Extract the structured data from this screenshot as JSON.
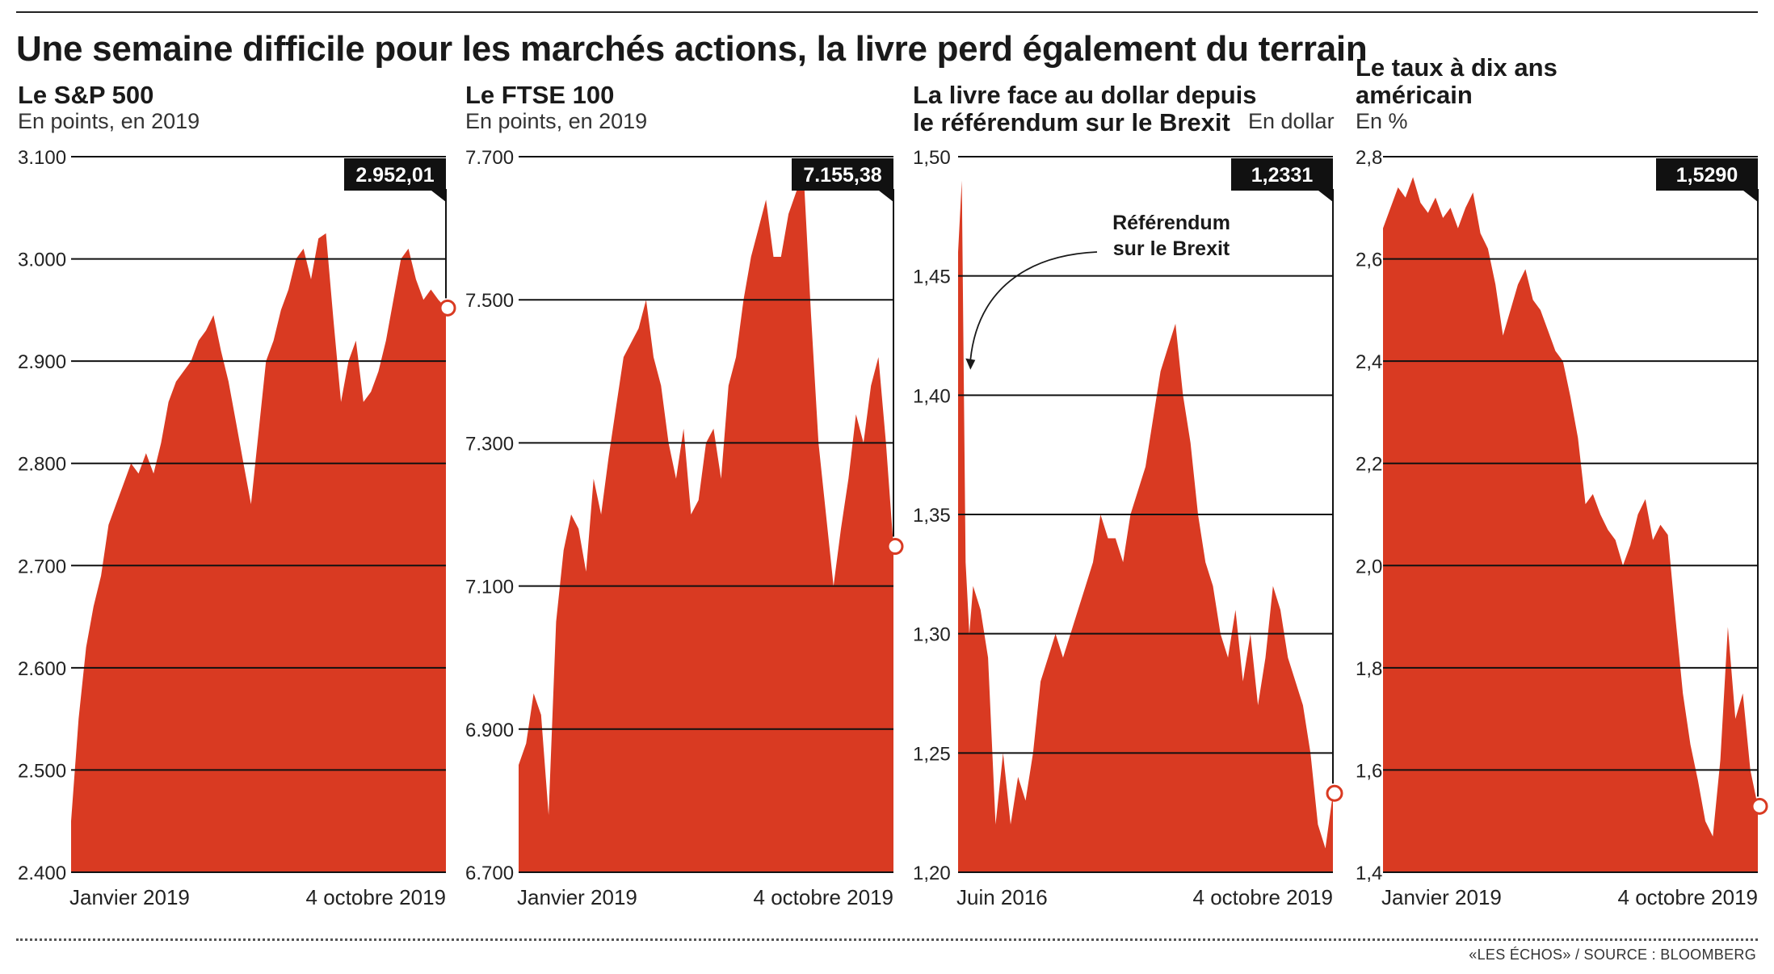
{
  "main_title": "Une semaine difficile pour les marchés actions, la livre perd également du terrain",
  "source": "«LES ÉCHOS» / SOURCE : BLOOMBERG",
  "colors": {
    "area": "#d93a22",
    "grid": "#111111",
    "label_bg": "#111111",
    "label_text": "#ffffff",
    "marker_fill": "#ffffff"
  },
  "chart_data": [
    {
      "type": "area",
      "title_lines": [
        "Le S&P 500"
      ],
      "subtitle": "En points, en 2019",
      "unit_right": "",
      "yticks": [
        2400,
        2500,
        2600,
        2700,
        2800,
        2900,
        3000,
        3100
      ],
      "ytick_labels": [
        "2.400",
        "2.500",
        "2.600",
        "2.700",
        "2.800",
        "2.900",
        "3.000",
        "3.100"
      ],
      "ylim": [
        2400,
        3100
      ],
      "x_start_label": "Janvier 2019",
      "x_end_label": "4 octobre 2019",
      "last_value": 2952.01,
      "last_label": "2.952,01",
      "x": [
        0,
        0.02,
        0.04,
        0.06,
        0.08,
        0.1,
        0.12,
        0.14,
        0.16,
        0.18,
        0.2,
        0.22,
        0.24,
        0.26,
        0.28,
        0.3,
        0.32,
        0.34,
        0.36,
        0.38,
        0.4,
        0.42,
        0.44,
        0.46,
        0.48,
        0.5,
        0.52,
        0.54,
        0.56,
        0.58,
        0.6,
        0.62,
        0.64,
        0.66,
        0.68,
        0.7,
        0.72,
        0.74,
        0.76,
        0.78,
        0.8,
        0.82,
        0.84,
        0.86,
        0.88,
        0.9,
        0.92,
        0.94,
        0.96,
        0.98,
        1
      ],
      "values": [
        2450,
        2550,
        2620,
        2660,
        2690,
        2740,
        2760,
        2780,
        2800,
        2790,
        2810,
        2790,
        2820,
        2860,
        2880,
        2890,
        2900,
        2920,
        2930,
        2945,
        2910,
        2880,
        2840,
        2800,
        2760,
        2830,
        2900,
        2920,
        2950,
        2970,
        3000,
        3010,
        2980,
        3020,
        3025,
        2940,
        2860,
        2900,
        2920,
        2860,
        2870,
        2890,
        2920,
        2960,
        3000,
        3010,
        2980,
        2960,
        2970,
        2960,
        2952
      ]
    },
    {
      "type": "area",
      "title_lines": [
        "Le FTSE 100"
      ],
      "subtitle": "En points, en 2019",
      "unit_right": "",
      "yticks": [
        6700,
        6900,
        7100,
        7300,
        7500,
        7700
      ],
      "ytick_labels": [
        "6.700",
        "6.900",
        "7.100",
        "7.300",
        "7.500",
        "7.700"
      ],
      "ylim": [
        6700,
        7700
      ],
      "x_start_label": "Janvier 2019",
      "x_end_label": "4 octobre 2019",
      "last_value": 7155.38,
      "last_label": "7.155,38",
      "x": [
        0,
        0.02,
        0.04,
        0.06,
        0.08,
        0.1,
        0.12,
        0.14,
        0.16,
        0.18,
        0.2,
        0.22,
        0.24,
        0.26,
        0.28,
        0.3,
        0.32,
        0.34,
        0.36,
        0.38,
        0.4,
        0.42,
        0.44,
        0.46,
        0.48,
        0.5,
        0.52,
        0.54,
        0.56,
        0.58,
        0.6,
        0.62,
        0.64,
        0.66,
        0.68,
        0.7,
        0.72,
        0.74,
        0.76,
        0.78,
        0.8,
        0.82,
        0.84,
        0.86,
        0.88,
        0.9,
        0.92,
        0.94,
        0.96,
        0.98,
        1
      ],
      "values": [
        6850,
        6880,
        6950,
        6920,
        6780,
        7050,
        7150,
        7200,
        7180,
        7120,
        7250,
        7200,
        7280,
        7350,
        7420,
        7440,
        7460,
        7500,
        7420,
        7380,
        7300,
        7250,
        7320,
        7200,
        7220,
        7300,
        7320,
        7250,
        7380,
        7420,
        7500,
        7560,
        7600,
        7640,
        7560,
        7560,
        7620,
        7650,
        7680,
        7480,
        7300,
        7200,
        7100,
        7180,
        7250,
        7340,
        7300,
        7380,
        7420,
        7300,
        7155
      ]
    },
    {
      "type": "area",
      "title_lines": [
        "La livre face au dollar depuis",
        "le référendum sur le Brexit"
      ],
      "subtitle": "",
      "unit_right": "En dollar",
      "yticks": [
        1.2,
        1.25,
        1.3,
        1.35,
        1.4,
        1.45,
        1.5
      ],
      "ytick_labels": [
        "1,20",
        "1,25",
        "1,30",
        "1,35",
        "1,40",
        "1,45",
        "1,50"
      ],
      "ylim": [
        1.2,
        1.5
      ],
      "x_start_label": "Juin 2016",
      "x_end_label": "4 octobre 2019",
      "last_value": 1.2331,
      "last_label": "1,2331",
      "annotation": {
        "lines": [
          "Référendum",
          "sur le Brexit"
        ],
        "x": 0.02,
        "y": 1.41
      },
      "x": [
        0,
        0.01,
        0.02,
        0.03,
        0.04,
        0.06,
        0.08,
        0.1,
        0.12,
        0.14,
        0.16,
        0.18,
        0.2,
        0.22,
        0.24,
        0.26,
        0.28,
        0.3,
        0.32,
        0.34,
        0.36,
        0.38,
        0.4,
        0.42,
        0.44,
        0.46,
        0.48,
        0.5,
        0.52,
        0.54,
        0.56,
        0.58,
        0.6,
        0.62,
        0.64,
        0.66,
        0.68,
        0.7,
        0.72,
        0.74,
        0.76,
        0.78,
        0.8,
        0.82,
        0.84,
        0.86,
        0.88,
        0.9,
        0.92,
        0.94,
        0.96,
        0.98,
        1
      ],
      "values": [
        1.46,
        1.49,
        1.33,
        1.3,
        1.32,
        1.31,
        1.29,
        1.22,
        1.25,
        1.22,
        1.24,
        1.23,
        1.25,
        1.28,
        1.29,
        1.3,
        1.29,
        1.3,
        1.31,
        1.32,
        1.33,
        1.35,
        1.34,
        1.34,
        1.33,
        1.35,
        1.36,
        1.37,
        1.39,
        1.41,
        1.42,
        1.43,
        1.4,
        1.38,
        1.35,
        1.33,
        1.32,
        1.3,
        1.29,
        1.31,
        1.28,
        1.3,
        1.27,
        1.29,
        1.32,
        1.31,
        1.29,
        1.28,
        1.27,
        1.25,
        1.22,
        1.21,
        1.233
      ]
    },
    {
      "type": "area",
      "title_lines": [
        "Le taux à dix ans",
        "américain"
      ],
      "subtitle": "En %",
      "unit_right": "",
      "yticks": [
        1.4,
        1.6,
        1.8,
        2.0,
        2.2,
        2.4,
        2.6,
        2.8
      ],
      "ytick_labels": [
        "1,4",
        "1,6",
        "1,8",
        "2,0",
        "2,2",
        "2,4",
        "2,6",
        "2,8"
      ],
      "ylim": [
        1.4,
        2.8
      ],
      "x_start_label": "Janvier 2019",
      "x_end_label": "4 octobre 2019",
      "last_value": 1.529,
      "last_label": "1,5290",
      "x": [
        0,
        0.02,
        0.04,
        0.06,
        0.08,
        0.1,
        0.12,
        0.14,
        0.16,
        0.18,
        0.2,
        0.22,
        0.24,
        0.26,
        0.28,
        0.3,
        0.32,
        0.34,
        0.36,
        0.38,
        0.4,
        0.42,
        0.44,
        0.46,
        0.48,
        0.5,
        0.52,
        0.54,
        0.56,
        0.58,
        0.6,
        0.62,
        0.64,
        0.66,
        0.68,
        0.7,
        0.72,
        0.74,
        0.76,
        0.78,
        0.8,
        0.82,
        0.84,
        0.86,
        0.88,
        0.9,
        0.92,
        0.94,
        0.96,
        0.98,
        1
      ],
      "values": [
        2.66,
        2.7,
        2.74,
        2.72,
        2.76,
        2.71,
        2.69,
        2.72,
        2.68,
        2.7,
        2.66,
        2.7,
        2.73,
        2.65,
        2.62,
        2.55,
        2.45,
        2.5,
        2.55,
        2.58,
        2.52,
        2.5,
        2.46,
        2.42,
        2.4,
        2.33,
        2.25,
        2.12,
        2.14,
        2.1,
        2.07,
        2.05,
        2.0,
        2.04,
        2.1,
        2.13,
        2.05,
        2.08,
        2.06,
        1.9,
        1.75,
        1.65,
        1.58,
        1.5,
        1.47,
        1.62,
        1.88,
        1.7,
        1.75,
        1.6,
        1.529
      ]
    }
  ]
}
